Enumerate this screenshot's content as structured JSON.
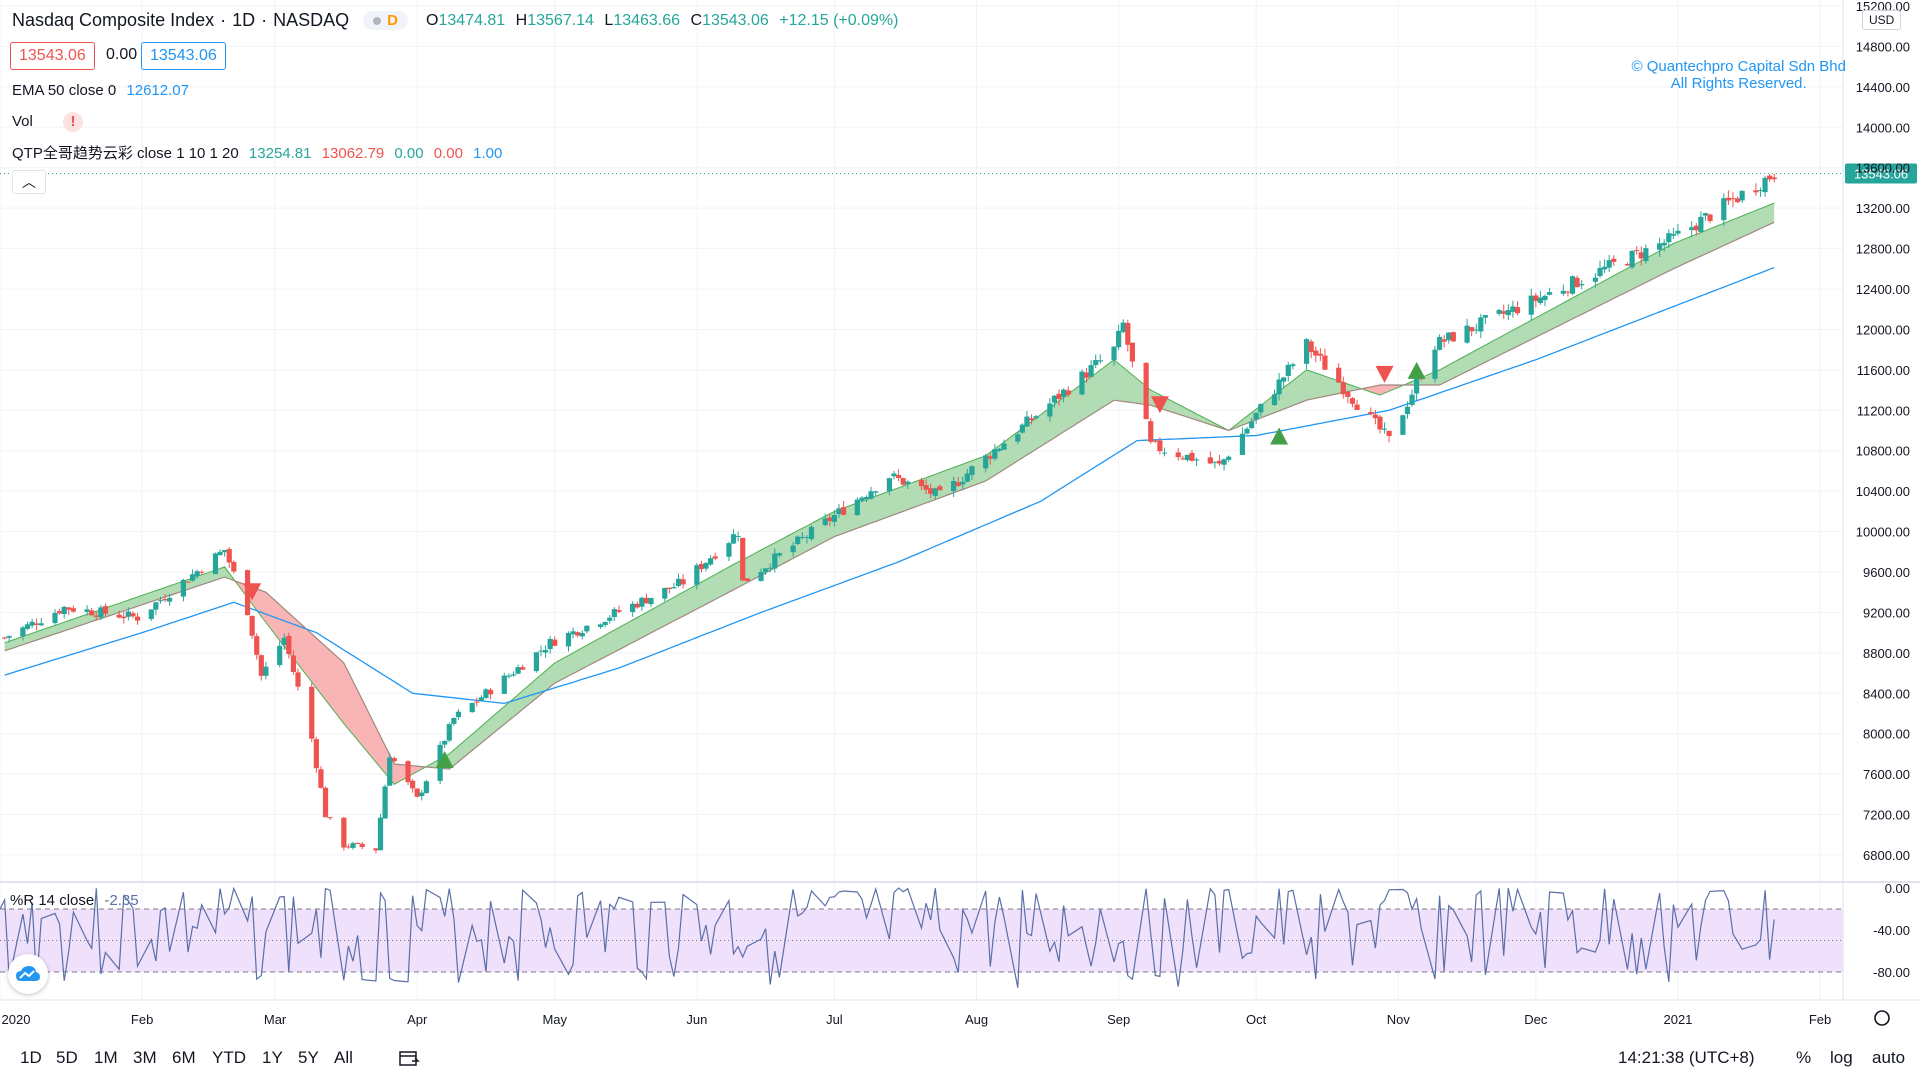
{
  "header": {
    "symbol_name": "Nasdaq Composite Index",
    "interval": "1D",
    "exchange": "NASDAQ",
    "delay_label": "D",
    "open_label": "O",
    "open": "13474.81",
    "high_label": "H",
    "high": "13567.14",
    "low_label": "L",
    "low": "13463.66",
    "close_label": "C",
    "close": "13543.06",
    "change": "+12.15 (+0.09%)"
  },
  "price_boxes": {
    "bid": "13543.06",
    "spread": "0.00",
    "ask": "13543.06"
  },
  "indicators": {
    "ema": {
      "label": "EMA 50 close 0",
      "value": "12612.07"
    },
    "vol": {
      "label": "Vol",
      "warning": "!"
    },
    "qtp": {
      "label": "QTP全哥趋势云彩 close 1 10 1 20",
      "v1": "13254.81",
      "v2": "13062.79",
      "v3": "0.00",
      "v4": "0.00",
      "v5": "1.00"
    },
    "wr": {
      "label": "%R 14 close",
      "value": "-2.35"
    }
  },
  "watermark": {
    "line1": "© Quantechpro Capital Sdn Bhd",
    "line2": "All Rights Reserved."
  },
  "axis": {
    "currency": "USD",
    "last_price_tag": "13543.06"
  },
  "timeframes": [
    "1D",
    "5D",
    "1M",
    "3M",
    "6M",
    "YTD",
    "1Y",
    "5Y",
    "All"
  ],
  "bottom_right": {
    "clock": "14:21:38 (UTC+8)",
    "percent": "%",
    "log": "log",
    "auto": "auto"
  },
  "colors": {
    "up": "#26a69a",
    "down": "#ef5350",
    "ema": "#2196f3",
    "cloud_up": "#a5d6a7",
    "cloud_down": "#f8a8a8",
    "wr_band": "#efe0fb",
    "wr_line": "#5b6fa8"
  },
  "chart_data": {
    "type": "candlestick",
    "price_axis": {
      "ticks": [
        6800,
        7200,
        7600,
        8000,
        8400,
        8800,
        9200,
        9600,
        10000,
        10400,
        10800,
        11200,
        11600,
        12000,
        12400,
        12800,
        13200,
        13600,
        14000,
        14400,
        14800,
        15200
      ]
    },
    "x_axis": {
      "labels": [
        "2020",
        "Feb",
        "Mar",
        "Apr",
        "May",
        "Jun",
        "Jul",
        "Aug",
        "Sep",
        "Oct",
        "Nov",
        "Dec",
        "2021",
        "Feb"
      ]
    },
    "price_path": [
      [
        "2020-01-02",
        8950
      ],
      [
        "2020-01-15",
        9250
      ],
      [
        "2020-01-31",
        9150
      ],
      [
        "2020-02-19",
        9820
      ],
      [
        "2020-02-24",
        9220
      ],
      [
        "2020-02-27",
        8570
      ],
      [
        "2020-03-03",
        8950
      ],
      [
        "2020-03-09",
        7950
      ],
      [
        "2020-03-12",
        7200
      ],
      [
        "2020-03-16",
        6900
      ],
      [
        "2020-03-20",
        6880
      ],
      [
        "2020-03-23",
        6860
      ],
      [
        "2020-03-26",
        7800
      ],
      [
        "2020-04-01",
        7350
      ],
      [
        "2020-04-09",
        8150
      ],
      [
        "2020-04-30",
        8900
      ],
      [
        "2020-05-29",
        9500
      ],
      [
        "2020-06-10",
        10000
      ],
      [
        "2020-06-11",
        9500
      ],
      [
        "2020-07-13",
        10550
      ],
      [
        "2020-07-24",
        10350
      ],
      [
        "2020-08-31",
        11800
      ],
      [
        "2020-09-02",
        12050
      ],
      [
        "2020-09-08",
        10850
      ],
      [
        "2020-09-23",
        10650
      ],
      [
        "2020-10-12",
        11850
      ],
      [
        "2020-10-30",
        10900
      ],
      [
        "2020-11-09",
        11850
      ],
      [
        "2020-12-31",
        12900
      ],
      [
        "2021-01-22",
        13543
      ]
    ],
    "ema50": [
      [
        "2020-01-02",
        8580
      ],
      [
        "2020-02-01",
        9000
      ],
      [
        "2020-02-21",
        9300
      ],
      [
        "2020-03-10",
        9000
      ],
      [
        "2020-03-31",
        8400
      ],
      [
        "2020-04-20",
        8300
      ],
      [
        "2020-05-15",
        8650
      ],
      [
        "2020-06-15",
        9200
      ],
      [
        "2020-07-15",
        9700
      ],
      [
        "2020-08-15",
        10300
      ],
      [
        "2020-09-05",
        10900
      ],
      [
        "2020-10-01",
        10950
      ],
      [
        "2020-10-30",
        11200
      ],
      [
        "2020-12-01",
        11700
      ],
      [
        "2021-01-22",
        12612
      ]
    ],
    "cloud_upper": [
      [
        "2020-01-02",
        8900
      ],
      [
        "2020-02-19",
        9650
      ],
      [
        "2020-02-28",
        9100
      ],
      [
        "2020-03-16",
        8100
      ],
      [
        "2020-03-27",
        7500
      ],
      [
        "2020-04-08",
        7800
      ],
      [
        "2020-05-01",
        8700
      ],
      [
        "2020-06-08",
        9650
      ],
      [
        "2020-07-01",
        10200
      ],
      [
        "2020-08-03",
        10750
      ],
      [
        "2020-08-31",
        11700
      ],
      [
        "2020-09-08",
        11400
      ],
      [
        "2020-09-25",
        11000
      ],
      [
        "2020-10-12",
        11600
      ],
      [
        "2020-10-28",
        11350
      ],
      [
        "2020-11-10",
        11600
      ],
      [
        "2020-12-31",
        12850
      ],
      [
        "2021-01-22",
        13250
      ]
    ],
    "cloud_lower": [
      [
        "2020-01-02",
        8820
      ],
      [
        "2020-02-19",
        9550
      ],
      [
        "2020-02-28",
        9400
      ],
      [
        "2020-03-16",
        8700
      ],
      [
        "2020-03-27",
        7700
      ],
      [
        "2020-04-08",
        7650
      ],
      [
        "2020-05-01",
        8500
      ],
      [
        "2020-06-08",
        9400
      ],
      [
        "2020-07-01",
        9950
      ],
      [
        "2020-08-03",
        10500
      ],
      [
        "2020-08-31",
        11300
      ],
      [
        "2020-09-08",
        11250
      ],
      [
        "2020-09-25",
        11000
      ],
      [
        "2020-10-12",
        11300
      ],
      [
        "2020-10-28",
        11450
      ],
      [
        "2020-11-10",
        11450
      ],
      [
        "2020-12-31",
        12600
      ],
      [
        "2021-01-22",
        13060
      ]
    ],
    "signals": [
      {
        "date": "2020-02-25",
        "type": "sell",
        "price": 9400
      },
      {
        "date": "2020-04-07",
        "type": "buy",
        "price": 7750
      },
      {
        "date": "2020-09-10",
        "type": "sell",
        "price": 11250
      },
      {
        "date": "2020-10-06",
        "type": "buy",
        "price": 10950
      },
      {
        "date": "2020-10-29",
        "type": "sell",
        "price": 11550
      },
      {
        "date": "2020-11-05",
        "type": "buy",
        "price": 11600
      }
    ],
    "wr_axis": {
      "ticks": [
        0,
        -40,
        -80
      ]
    },
    "wr_levels": [
      -20,
      -50,
      -80
    ]
  }
}
